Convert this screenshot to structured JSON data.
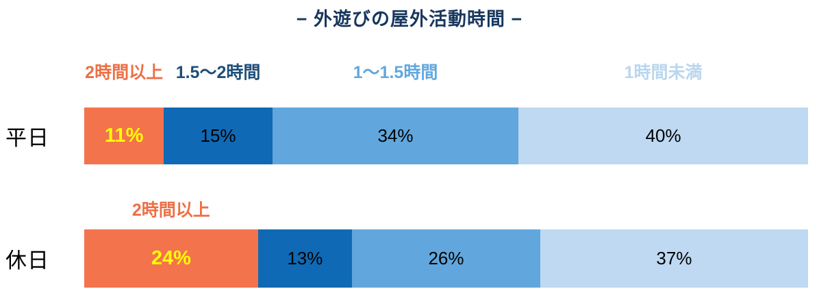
{
  "title": "− 外遊びの屋外活動時間 −",
  "title_color": "#17375E",
  "holiday_annotation": "2時間以上",
  "chart_data": {
    "type": "bar",
    "orientation": "horizontal",
    "stacked": true,
    "unit": "%",
    "title": "外遊びの屋外活動時間",
    "categories": [
      "平日",
      "休日"
    ],
    "series": [
      {
        "name": "2時間以上",
        "values": [
          11,
          24
        ],
        "color": "#F3734D",
        "label_color": "#ED6F45"
      },
      {
        "name": "1.5〜2時間",
        "values": [
          15,
          13
        ],
        "color": "#1069B4",
        "label_color": "#1F4E79"
      },
      {
        "name": "1〜1.5時間",
        "values": [
          34,
          26
        ],
        "color": "#61A7DD",
        "label_color": "#62A8DE"
      },
      {
        "name": "1時間未満",
        "values": [
          40,
          37
        ],
        "color": "#BED9F1",
        "label_color": "#B9D6EE"
      }
    ],
    "value_labels": [
      [
        "11%",
        "15%",
        "34%",
        "40%"
      ],
      [
        "24%",
        "13%",
        "26%",
        "37%"
      ]
    ],
    "highlight_value_color": "#FFFF00",
    "value_color": "#000000",
    "xlim": [
      0,
      100
    ],
    "grid": false,
    "legend_position": "above-bars"
  }
}
